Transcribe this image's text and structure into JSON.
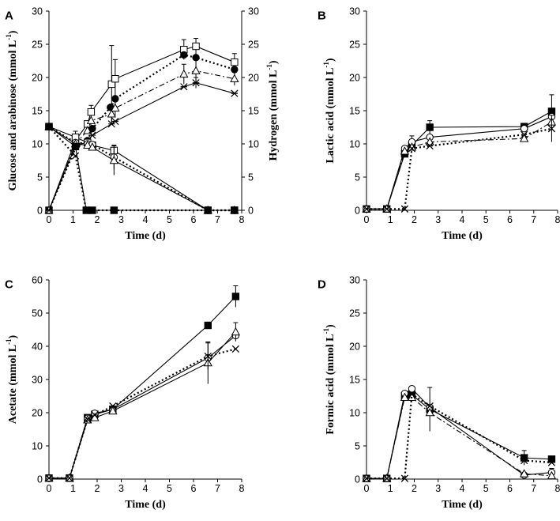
{
  "chart_data": [
    {
      "type": "line",
      "panel": "A",
      "xlabel": "Time (d)",
      "ylabel": "Glucose and  arabinose (mmol L",
      "ylabel_sup": "-1",
      "ylabel_end": ")",
      "y2label": "Hydrogen (mmol L",
      "y2label_sup": "-1",
      "y2label_end": ")",
      "xlim": [
        0,
        8
      ],
      "ylim": [
        0,
        30
      ],
      "y2lim": [
        0,
        30
      ],
      "xticks": [
        "0",
        "1",
        "2",
        "3",
        "4",
        "5",
        "6",
        "7",
        "8"
      ],
      "yticks": [
        "0",
        "5",
        "10",
        "15",
        "20",
        "25",
        "30"
      ],
      "y2ticks": [
        "0",
        "5",
        "10",
        "15",
        "20",
        "25",
        "30"
      ],
      "series": [
        {
          "name": "hydrogen-open-square",
          "marker": "open-square",
          "dash": "solid",
          "x": [
            0,
            1.1,
            1.6,
            1.75,
            2.6,
            2.75,
            5.6,
            6.1,
            7.7
          ],
          "y": [
            0,
            10.5,
            13.0,
            14.8,
            19.0,
            19.8,
            24.2,
            24.7,
            22.3
          ],
          "err": [
            0,
            0,
            0,
            1.0,
            5.8,
            2.9,
            1.5,
            1.2,
            1.3
          ]
        },
        {
          "name": "hydrogen-filled-circle",
          "marker": "filled-circle",
          "dash": "dotted",
          "x": [
            0,
            1.15,
            1.6,
            1.8,
            2.55,
            2.75,
            5.6,
            6.1,
            7.7
          ],
          "y": [
            0,
            9.8,
            10.5,
            12.3,
            15.5,
            16.8,
            23.4,
            23.0,
            21.2
          ],
          "err": [
            0,
            0,
            0,
            0,
            0,
            0,
            0,
            0,
            0
          ]
        },
        {
          "name": "hydrogen-open-triangle",
          "marker": "open-triangle",
          "dash": "dashdot",
          "x": [
            0,
            1.1,
            1.6,
            1.75,
            2.6,
            2.75,
            5.6,
            6.1,
            7.7
          ],
          "y": [
            0,
            10.0,
            12.0,
            13.5,
            14.5,
            15.4,
            20.5,
            21.0,
            19.8
          ],
          "err": [
            0,
            0,
            0,
            0,
            1.5,
            1.2,
            1.5,
            1.8,
            1.0
          ]
        },
        {
          "name": "hydrogen-asterisk",
          "marker": "asterisk",
          "dash": "solid",
          "x": [
            0,
            1.1,
            1.6,
            1.8,
            2.6,
            2.75,
            5.6,
            6.1,
            7.7
          ],
          "y": [
            0,
            9.7,
            10.3,
            11.3,
            13.0,
            13.4,
            18.6,
            19.2,
            17.6
          ],
          "err": [
            0,
            0,
            0,
            0,
            0,
            0,
            0,
            0.8,
            0
          ]
        },
        {
          "name": "sugar-open-square",
          "marker": "open-square",
          "dash": "solid",
          "x": [
            0,
            1.1,
            1.6,
            1.8,
            2.7,
            6.6,
            7.7
          ],
          "y": [
            12.6,
            11.0,
            10.2,
            9.8,
            9.0,
            0,
            0
          ],
          "err": [
            0,
            0.9,
            0,
            0,
            0,
            0,
            0
          ]
        },
        {
          "name": "sugar-open-circle",
          "marker": "open-circle",
          "dash": "dotted",
          "x": [
            0,
            1.1,
            1.6,
            1.8,
            2.7,
            6.6,
            7.7
          ],
          "y": [
            12.6,
            10.2,
            10.0,
            9.9,
            8.0,
            0,
            0
          ],
          "err": [
            0,
            0,
            0,
            0,
            1.8,
            0,
            0
          ]
        },
        {
          "name": "sugar-open-triangle",
          "marker": "open-triangle",
          "dash": "solid",
          "x": [
            0,
            1.1,
            1.6,
            1.8,
            2.7,
            6.6,
            7.7
          ],
          "y": [
            12.6,
            10.0,
            9.8,
            9.5,
            7.5,
            0,
            0
          ],
          "err": [
            0,
            0,
            0,
            0,
            2.2,
            0,
            0
          ]
        },
        {
          "name": "sugar-filled-square",
          "marker": "filled-square",
          "dash": "solid",
          "x": [
            0,
            1.1,
            1.55,
            1.8,
            2.7,
            6.6,
            7.7
          ],
          "y": [
            12.6,
            9.6,
            0,
            0,
            0,
            0,
            0
          ],
          "err": [
            0,
            0,
            0,
            0,
            0,
            0,
            0
          ]
        },
        {
          "name": "sugar-cross",
          "marker": "cross",
          "dash": "dotted",
          "x": [
            0,
            1.1,
            1.55,
            1.8,
            2.7,
            6.6,
            7.7
          ],
          "y": [
            12.6,
            8.2,
            0,
            0,
            0,
            0,
            0
          ],
          "err": [
            0,
            0,
            0,
            0,
            0,
            0,
            0
          ]
        }
      ]
    },
    {
      "type": "line",
      "panel": "B",
      "xlabel": "Time (d)",
      "ylabel": "Lactic acid (mmol L",
      "ylabel_sup": "-1",
      "ylabel_end": ")",
      "xlim": [
        0,
        8
      ],
      "ylim": [
        0,
        30
      ],
      "xticks": [
        "0",
        "1",
        "2",
        "3",
        "4",
        "5",
        "6",
        "7",
        "8"
      ],
      "yticks": [
        "0",
        "5",
        "10",
        "15",
        "20",
        "25",
        "30"
      ],
      "series": [
        {
          "name": "filled-square",
          "marker": "filled-square",
          "dash": "solid",
          "x": [
            0,
            0.85,
            1.6,
            1.9,
            2.65,
            6.6,
            7.75
          ],
          "y": [
            0.2,
            0.2,
            8.5,
            9.8,
            12.5,
            12.6,
            14.9
          ],
          "err": [
            0,
            0,
            0,
            0,
            1.0,
            0,
            2.5
          ]
        },
        {
          "name": "open-circle",
          "marker": "open-circle",
          "dash": "solid",
          "x": [
            0,
            0.85,
            1.6,
            1.9,
            2.65,
            6.6,
            7.75
          ],
          "y": [
            0.2,
            0.2,
            9.3,
            10.3,
            11.0,
            12.3,
            14.1
          ],
          "err": [
            0,
            0,
            0,
            0.9,
            0,
            0,
            0
          ]
        },
        {
          "name": "open-triangle",
          "marker": "open-triangle",
          "dash": "dashdot",
          "x": [
            0,
            0.85,
            1.6,
            1.9,
            2.65,
            6.6,
            7.75
          ],
          "y": [
            0.2,
            0.2,
            8.9,
            9.5,
            10.3,
            10.8,
            13.3
          ],
          "err": [
            0,
            0,
            0,
            0,
            0,
            0,
            0
          ]
        },
        {
          "name": "cross",
          "marker": "cross",
          "dash": "dotted",
          "x": [
            0,
            0.85,
            1.6,
            1.9,
            2.65,
            6.6,
            7.75
          ],
          "y": [
            0.2,
            0.2,
            0.2,
            9.3,
            9.7,
            11.4,
            12.3
          ],
          "err": [
            0,
            0,
            0,
            0,
            0,
            0,
            2.0
          ]
        }
      ]
    },
    {
      "type": "line",
      "panel": "C",
      "xlabel": "Time (d)",
      "ylabel": "Acetate (mmol L",
      "ylabel_sup": "-1",
      "ylabel_end": ")",
      "xlim": [
        0,
        8
      ],
      "ylim": [
        0,
        60
      ],
      "xticks": [
        "0",
        "1",
        "2",
        "3",
        "4",
        "5",
        "6",
        "7",
        "8"
      ],
      "yticks": [
        "0",
        "10",
        "20",
        "30",
        "40",
        "50",
        "60"
      ],
      "series": [
        {
          "name": "filled-square",
          "marker": "filled-square",
          "dash": "solid",
          "x": [
            0,
            0.85,
            1.6,
            1.9,
            2.65,
            6.6,
            7.75
          ],
          "y": [
            0.3,
            0.3,
            18.5,
            19.5,
            21.0,
            46.3,
            55.0
          ],
          "err": [
            0,
            0,
            0,
            0,
            0,
            0,
            3.2
          ]
        },
        {
          "name": "open-circle",
          "marker": "open-circle",
          "dash": "solid",
          "x": [
            0,
            0.85,
            1.6,
            1.9,
            2.65,
            6.6,
            7.75
          ],
          "y": [
            0.3,
            0.3,
            18.3,
            19.8,
            21.0,
            36.5,
            43.2
          ],
          "err": [
            0,
            0,
            0,
            0,
            0,
            0,
            0
          ]
        },
        {
          "name": "open-triangle",
          "marker": "open-triangle",
          "dash": "solid",
          "x": [
            0,
            0.85,
            1.6,
            1.9,
            2.65,
            6.6,
            7.75
          ],
          "y": [
            0.3,
            0.3,
            17.8,
            18.5,
            20.5,
            35.0,
            44.3
          ],
          "err": [
            0,
            0,
            0,
            0,
            0,
            6.3,
            2.8
          ]
        },
        {
          "name": "cross",
          "marker": "cross",
          "dash": "dotted",
          "x": [
            0,
            0.85,
            1.6,
            1.9,
            2.65,
            6.6,
            7.75
          ],
          "y": [
            0.3,
            0.3,
            18.0,
            19.3,
            22.0,
            37.0,
            39.2
          ],
          "err": [
            0,
            0,
            0,
            0,
            0,
            4.0,
            0
          ]
        }
      ]
    },
    {
      "type": "line",
      "panel": "D",
      "xlabel": "Time (d)",
      "ylabel": "Formic acid (mmol L",
      "ylabel_sup": "-1",
      "ylabel_end": ")",
      "xlim": [
        0,
        8
      ],
      "ylim": [
        0,
        30
      ],
      "xticks": [
        "0",
        "1",
        "2",
        "3",
        "4",
        "5",
        "6",
        "7",
        "8"
      ],
      "yticks": [
        "0",
        "5",
        "10",
        "15",
        "20",
        "25",
        "30"
      ],
      "series": [
        {
          "name": "filled-square",
          "marker": "filled-square",
          "dash": "solid",
          "x": [
            0,
            0.85,
            1.6,
            1.9,
            2.65,
            6.6,
            7.75
          ],
          "y": [
            0.1,
            0.1,
            12.5,
            12.7,
            10.5,
            3.2,
            3.0
          ],
          "err": [
            0,
            0,
            0,
            0,
            3.3,
            1.1,
            0
          ]
        },
        {
          "name": "open-circle",
          "marker": "open-circle",
          "dash": "solid",
          "x": [
            0,
            0.85,
            1.6,
            1.9,
            2.65,
            6.6,
            7.75
          ],
          "y": [
            0.1,
            0.1,
            12.9,
            13.6,
            10.8,
            0.6,
            1.0
          ],
          "err": [
            0,
            0,
            0,
            0,
            0,
            0,
            0.6
          ]
        },
        {
          "name": "open-triangle",
          "marker": "open-triangle",
          "dash": "dashdot",
          "x": [
            0,
            0.85,
            1.6,
            1.9,
            2.65,
            6.6,
            7.75
          ],
          "y": [
            0.1,
            0.1,
            12.3,
            12.3,
            10.0,
            0.8,
            0.5
          ],
          "err": [
            0,
            0,
            0,
            0,
            0,
            0,
            0
          ]
        },
        {
          "name": "cross",
          "marker": "cross",
          "dash": "dotted",
          "x": [
            0,
            0.85,
            1.6,
            1.9,
            2.65,
            6.6,
            7.75
          ],
          "y": [
            0.1,
            0.1,
            0.1,
            12.8,
            11.0,
            2.8,
            2.5
          ],
          "err": [
            0,
            0,
            0,
            0,
            0,
            0,
            0
          ]
        }
      ]
    }
  ]
}
